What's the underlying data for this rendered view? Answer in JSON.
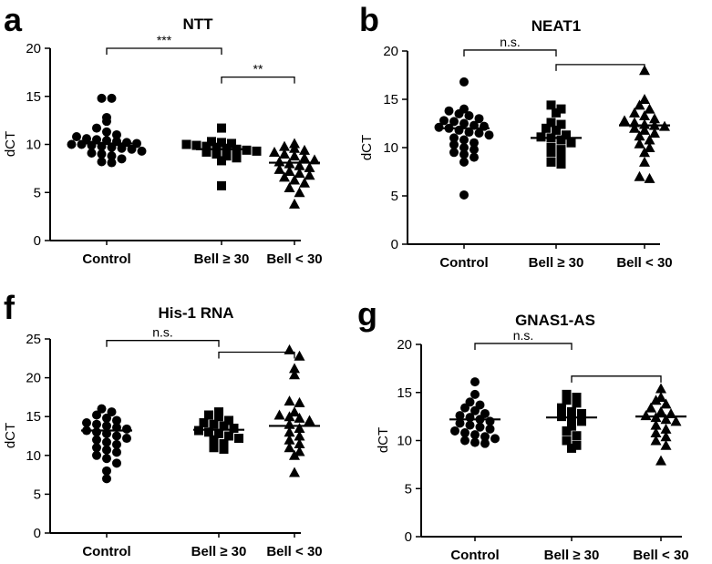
{
  "chart_data": [
    {
      "type": "scatter",
      "panel_letter": "a",
      "title": "NTT",
      "ylabel": "dCT",
      "ylim": [
        0,
        20
      ],
      "yticks": [
        0,
        5,
        10,
        15,
        20
      ],
      "categories": [
        "Control",
        "Bell ≥ 30",
        "Bell < 30"
      ],
      "markers": [
        "circle",
        "square",
        "triangle"
      ],
      "means": [
        10.1,
        9.5,
        8.1
      ],
      "groups": [
        [
          14.8,
          14.8,
          12.8,
          12.4,
          11.7,
          11.3,
          11.0,
          10.8,
          10.6,
          10.5,
          10.4,
          10.3,
          10.2,
          10.1,
          10.0,
          10.0,
          9.9,
          9.8,
          9.7,
          9.6,
          9.5,
          9.3,
          9.1,
          9.0,
          8.8,
          8.5,
          8.2,
          8.1
        ],
        [
          11.7,
          10.3,
          10.2,
          10.1,
          10.0,
          9.9,
          9.8,
          9.7,
          9.6,
          9.5,
          9.4,
          9.3,
          9.2,
          9.0,
          8.8,
          8.6,
          8.3,
          5.7
        ],
        [
          10.1,
          9.8,
          9.6,
          9.4,
          9.2,
          9.0,
          8.8,
          8.6,
          8.4,
          8.2,
          8.0,
          7.8,
          7.6,
          7.4,
          7.2,
          7.0,
          6.8,
          6.6,
          6.3,
          6.0,
          5.5,
          5.0,
          3.8
        ]
      ],
      "brackets": [
        {
          "from": 0,
          "to": 1,
          "y": 20,
          "label": "***"
        },
        {
          "from": 1,
          "to": 2,
          "y": 17,
          "label": "**"
        }
      ]
    },
    {
      "type": "scatter",
      "panel_letter": "b",
      "title": "NEAT1",
      "ylabel": "dCT",
      "ylim": [
        0,
        20
      ],
      "yticks": [
        0,
        5,
        10,
        15,
        20
      ],
      "categories": [
        "Control",
        "Bell ≥ 30",
        "Bell < 30"
      ],
      "markers": [
        "circle",
        "square",
        "triangle"
      ],
      "means": [
        12.0,
        11.0,
        12.3
      ],
      "groups": [
        [
          16.8,
          14.0,
          13.8,
          13.5,
          13.3,
          13.0,
          12.8,
          12.7,
          12.5,
          12.3,
          12.2,
          12.1,
          12.0,
          11.8,
          11.6,
          11.5,
          11.3,
          11.0,
          10.8,
          10.5,
          10.3,
          10.0,
          9.8,
          9.5,
          9.3,
          9.0,
          8.5,
          5.1
        ],
        [
          14.4,
          14.0,
          13.6,
          12.6,
          12.4,
          12.0,
          11.8,
          11.3,
          11.1,
          11.0,
          10.8,
          10.5,
          10.0,
          9.8,
          9.5,
          9.0,
          8.5,
          8.3
        ],
        [
          18.0,
          15.0,
          14.4,
          14.0,
          13.6,
          13.3,
          13.0,
          12.8,
          12.6,
          12.4,
          12.3,
          12.2,
          12.0,
          11.8,
          11.5,
          11.2,
          10.8,
          10.4,
          10.0,
          9.5,
          8.5,
          7.0,
          6.8
        ]
      ],
      "brackets": [
        {
          "from": 0,
          "to": 1,
          "y": 20.1,
          "label": "n.s."
        },
        {
          "from": 1,
          "to": 2,
          "y": 18.6,
          "label": ""
        }
      ]
    },
    {
      "type": "scatter",
      "panel_letter": "f",
      "title": "His-1 RNA",
      "ylabel": "dCT",
      "ylim": [
        0,
        25
      ],
      "yticks": [
        0,
        5,
        10,
        15,
        20,
        25
      ],
      "categories": [
        "Control",
        "Bell  ≥ 30",
        "Bell < 30"
      ],
      "markers": [
        "circle",
        "square",
        "triangle"
      ],
      "means": [
        13.2,
        13.3,
        13.8
      ],
      "groups": [
        [
          16.0,
          15.6,
          15.2,
          14.8,
          14.5,
          14.2,
          14.0,
          13.8,
          13.6,
          13.4,
          13.2,
          13.0,
          12.8,
          12.5,
          12.2,
          12.0,
          11.7,
          11.4,
          11.0,
          10.7,
          10.4,
          10.0,
          9.6,
          9.0,
          8.0,
          7.0
        ],
        [
          15.6,
          15.2,
          15.0,
          14.5,
          14.2,
          14.0,
          13.8,
          13.5,
          13.2,
          13.0,
          12.8,
          12.5,
          12.2,
          12.0,
          11.5,
          11.0,
          10.8
        ],
        [
          23.6,
          22.8,
          21.2,
          20.4,
          17.0,
          16.8,
          15.6,
          15.2,
          15.0,
          14.8,
          14.5,
          14.0,
          13.5,
          13.0,
          12.5,
          12.0,
          11.5,
          11.0,
          10.5,
          10.0,
          7.8
        ]
      ],
      "brackets": [
        {
          "from": 0,
          "to": 1,
          "y": 24.8,
          "label": "n.s."
        },
        {
          "from": 1,
          "to": 2,
          "y": 23.3,
          "label": ""
        }
      ]
    },
    {
      "type": "scatter",
      "panel_letter": "g",
      "title": "GNAS1-AS",
      "ylabel": "dCT",
      "ylim": [
        0,
        20
      ],
      "yticks": [
        0,
        5,
        10,
        15,
        20
      ],
      "categories": [
        "Control",
        "Bell ≥ 30",
        "Bell < 30"
      ],
      "markers": [
        "circle",
        "square",
        "triangle"
      ],
      "means": [
        12.2,
        12.4,
        12.5
      ],
      "groups": [
        [
          16.1,
          14.8,
          14.0,
          13.7,
          13.4,
          13.1,
          12.8,
          12.6,
          12.4,
          12.2,
          12.0,
          11.8,
          11.6,
          11.4,
          11.2,
          11.0,
          10.8,
          10.6,
          10.4,
          10.2,
          10.0,
          9.8,
          9.7
        ],
        [
          14.8,
          14.5,
          14.2,
          13.9,
          13.4,
          13.0,
          12.8,
          12.5,
          12.2,
          12.0,
          11.5,
          11.0,
          10.5,
          10.0,
          9.5,
          9.2
        ],
        [
          15.4,
          14.5,
          14.2,
          13.8,
          13.4,
          13.0,
          12.8,
          12.6,
          12.4,
          12.2,
          12.0,
          11.6,
          11.2,
          10.8,
          10.4,
          10.0,
          9.5,
          7.9
        ]
      ],
      "brackets": [
        {
          "from": 0,
          "to": 1,
          "y": 20.1,
          "label": "n.s."
        },
        {
          "from": 1,
          "to": 2,
          "y": 16.7,
          "label": ""
        }
      ]
    }
  ]
}
